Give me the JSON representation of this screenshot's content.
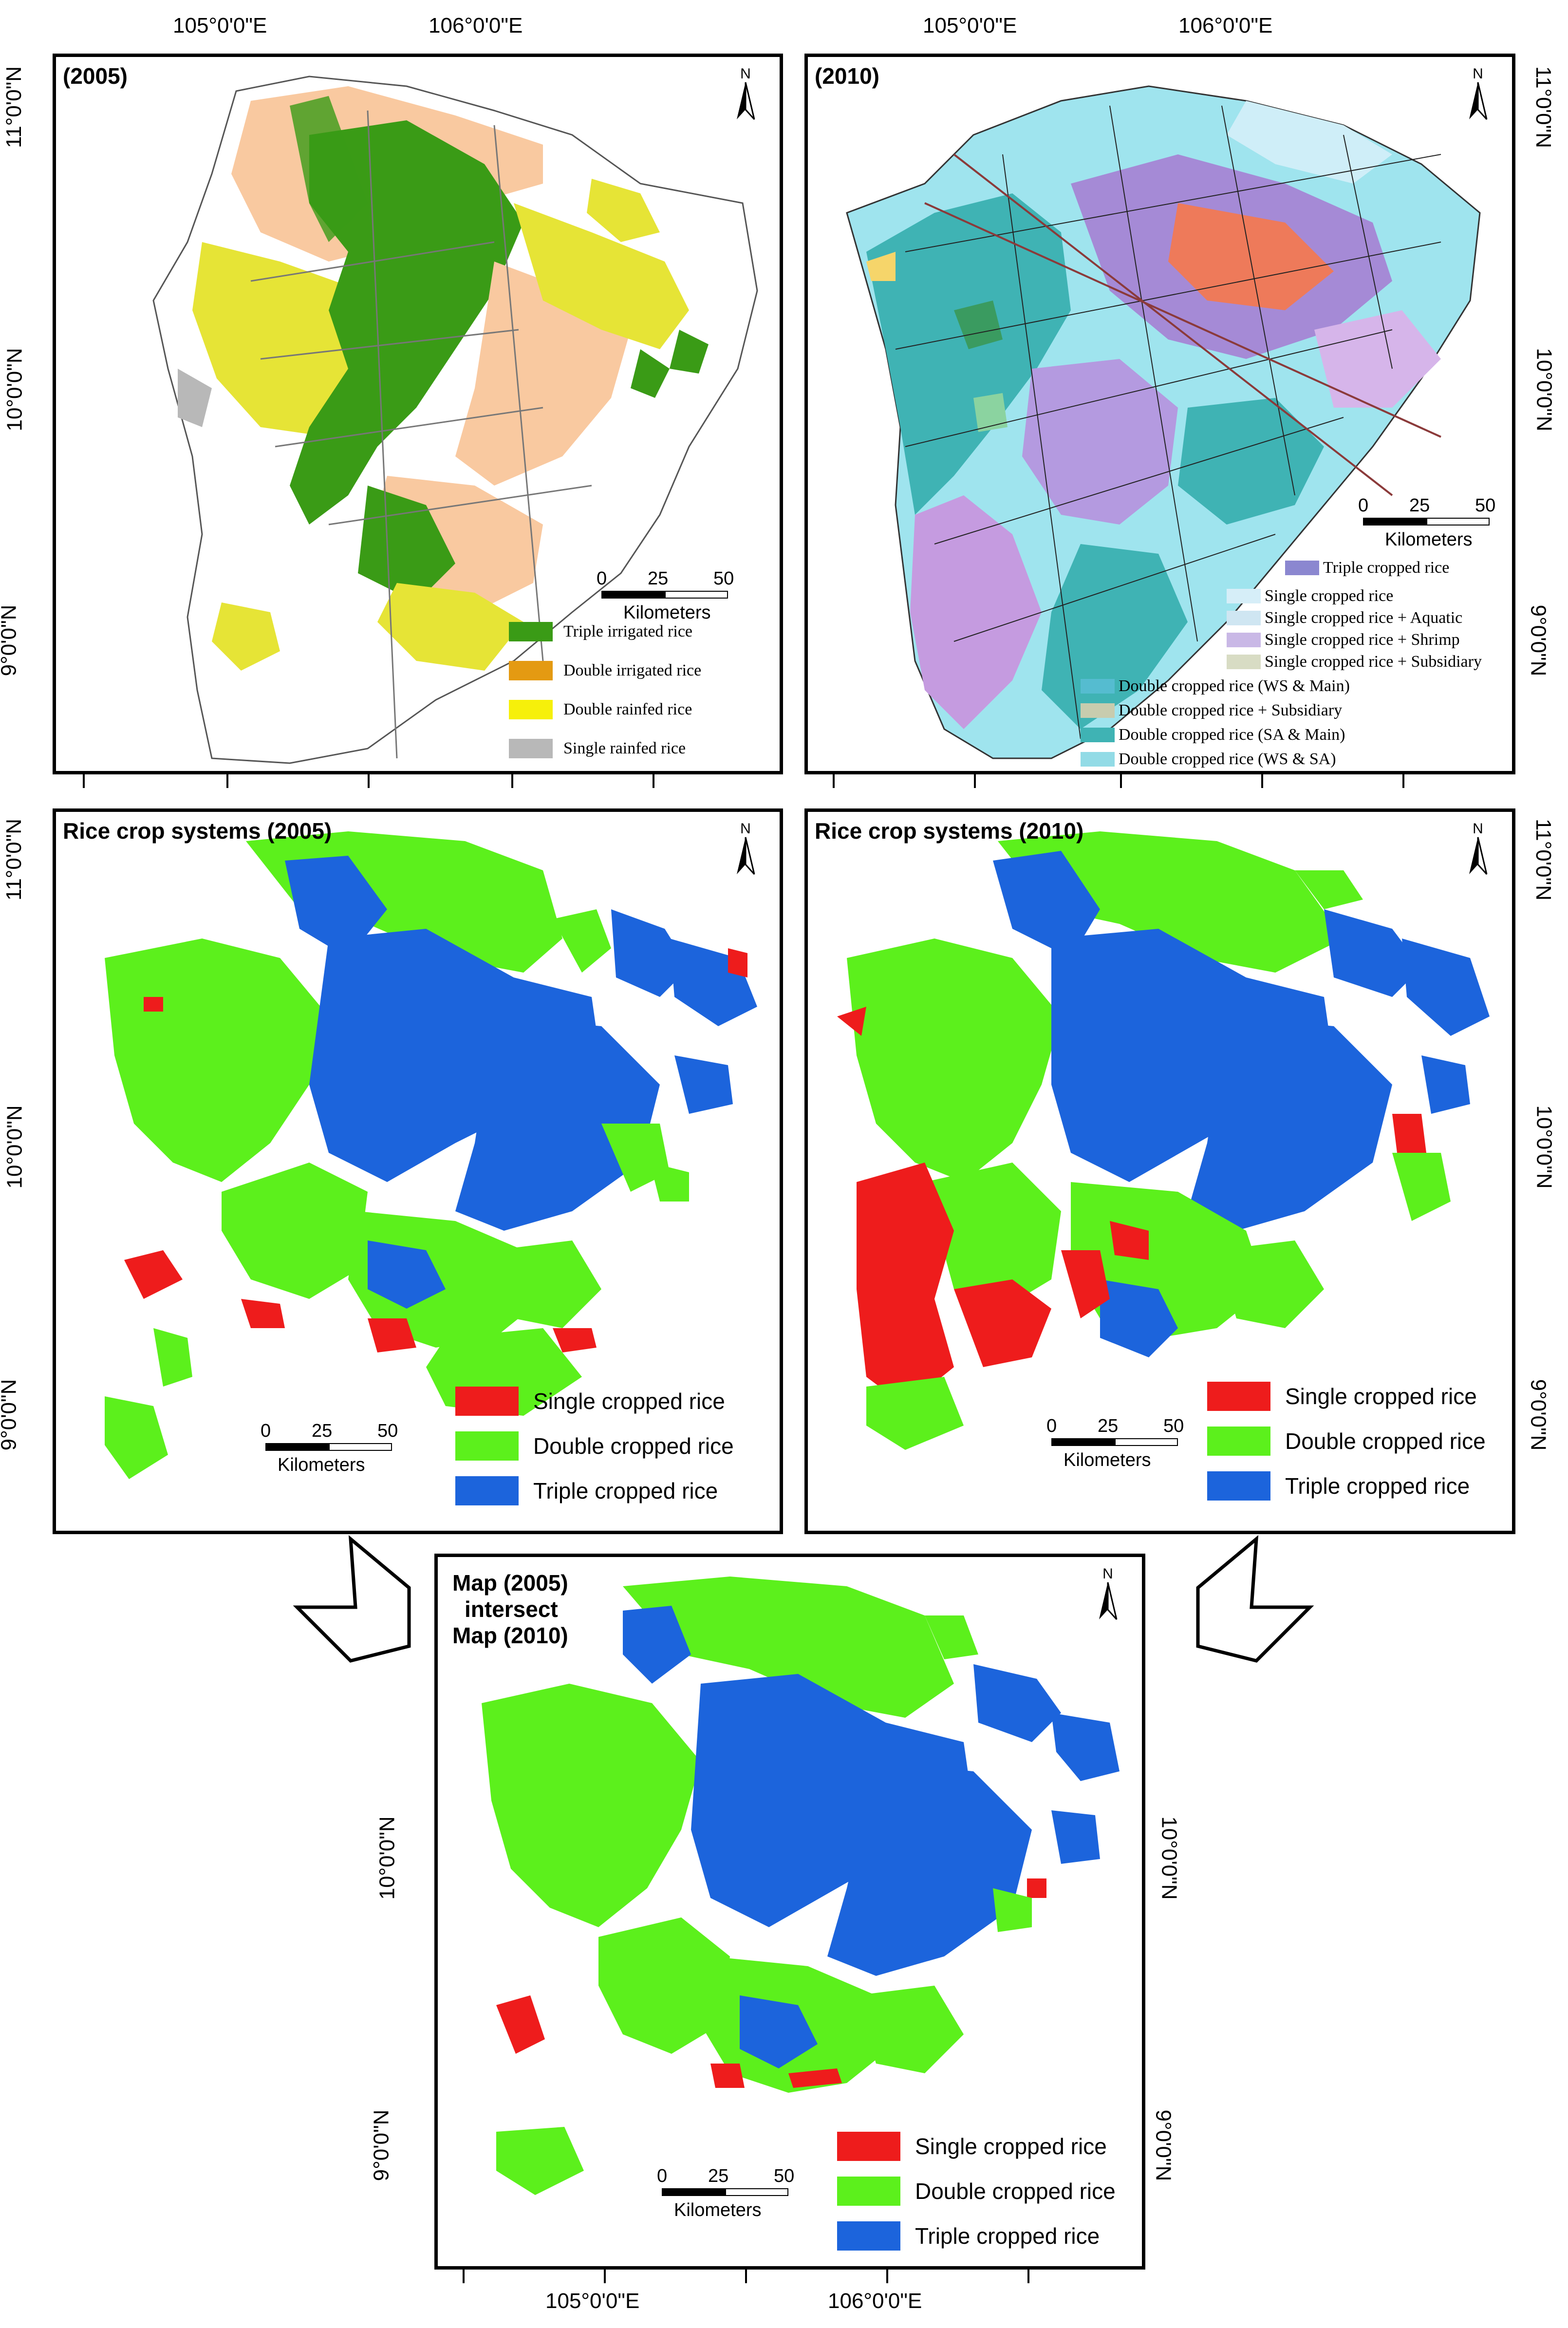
{
  "coords": {
    "lon_105": "105°0'0\"E",
    "lon_106": "106°0'0\"E",
    "lat_11": "11°0'0\"N",
    "lat_10": "10°0'0\"N",
    "lat_9": "9°0'0\"N"
  },
  "north_label": "N",
  "scale": {
    "zero": "0",
    "mid": "25",
    "max": "50",
    "unit": "Kilometers"
  },
  "panels": {
    "p2005": {
      "title": "(2005)",
      "legend": [
        {
          "label": "Triple irrigated rice",
          "color": "#3a9b16"
        },
        {
          "label": "Double irrigated rice",
          "color": "#e49a12"
        },
        {
          "label": "Double rainfed rice",
          "color": "#f6f00a"
        },
        {
          "label": "Single rainfed rice",
          "color": "#b8b8b8"
        }
      ]
    },
    "p2010": {
      "title": "(2010)",
      "legend": [
        {
          "label": "Triple cropped rice",
          "color": "#8b87d0"
        },
        {
          "label": "Single cropped rice",
          "color": "#d6eef8"
        },
        {
          "label": "Single cropped rice + Aquatic",
          "color": "#cfe6f2"
        },
        {
          "label": "Single cropped rice + Shrimp",
          "color": "#c9b8e6"
        },
        {
          "label": "Single cropped rice + Subsidiary",
          "color": "#d8dcc4"
        },
        {
          "label": "Double cropped rice (WS & Main)",
          "color": "#55bcd0"
        },
        {
          "label": "Double cropped rice + Subsidiary",
          "color": "#c8ccae"
        },
        {
          "label": "Double cropped rice (SA & Main)",
          "color": "#3fb3b4"
        },
        {
          "label": "Double cropped rice (WS & SA)",
          "color": "#92dbe6"
        }
      ]
    },
    "systems2005": {
      "title": "Rice crop systems (2005)",
      "legend": [
        {
          "label": "Single cropped rice",
          "color": "#ee1c1c"
        },
        {
          "label": "Double cropped rice",
          "color": "#5cf01c"
        },
        {
          "label": "Triple cropped rice",
          "color": "#1c64dc"
        }
      ]
    },
    "systems2010": {
      "title": "Rice crop systems (2010)",
      "legend": [
        {
          "label": "Single cropped rice",
          "color": "#ee1c1c"
        },
        {
          "label": "Double cropped rice",
          "color": "#5cf01c"
        },
        {
          "label": "Triple cropped rice",
          "color": "#1c64dc"
        }
      ]
    },
    "intersect": {
      "title_line1": "Map (2005)",
      "title_line2": "intersect",
      "title_line3": "Map (2010)",
      "legend": [
        {
          "label": "Single cropped rice",
          "color": "#ee1c1c"
        },
        {
          "label": "Double cropped rice",
          "color": "#5cf01c"
        },
        {
          "label": "Triple cropped rice",
          "color": "#1c64dc"
        }
      ]
    }
  }
}
